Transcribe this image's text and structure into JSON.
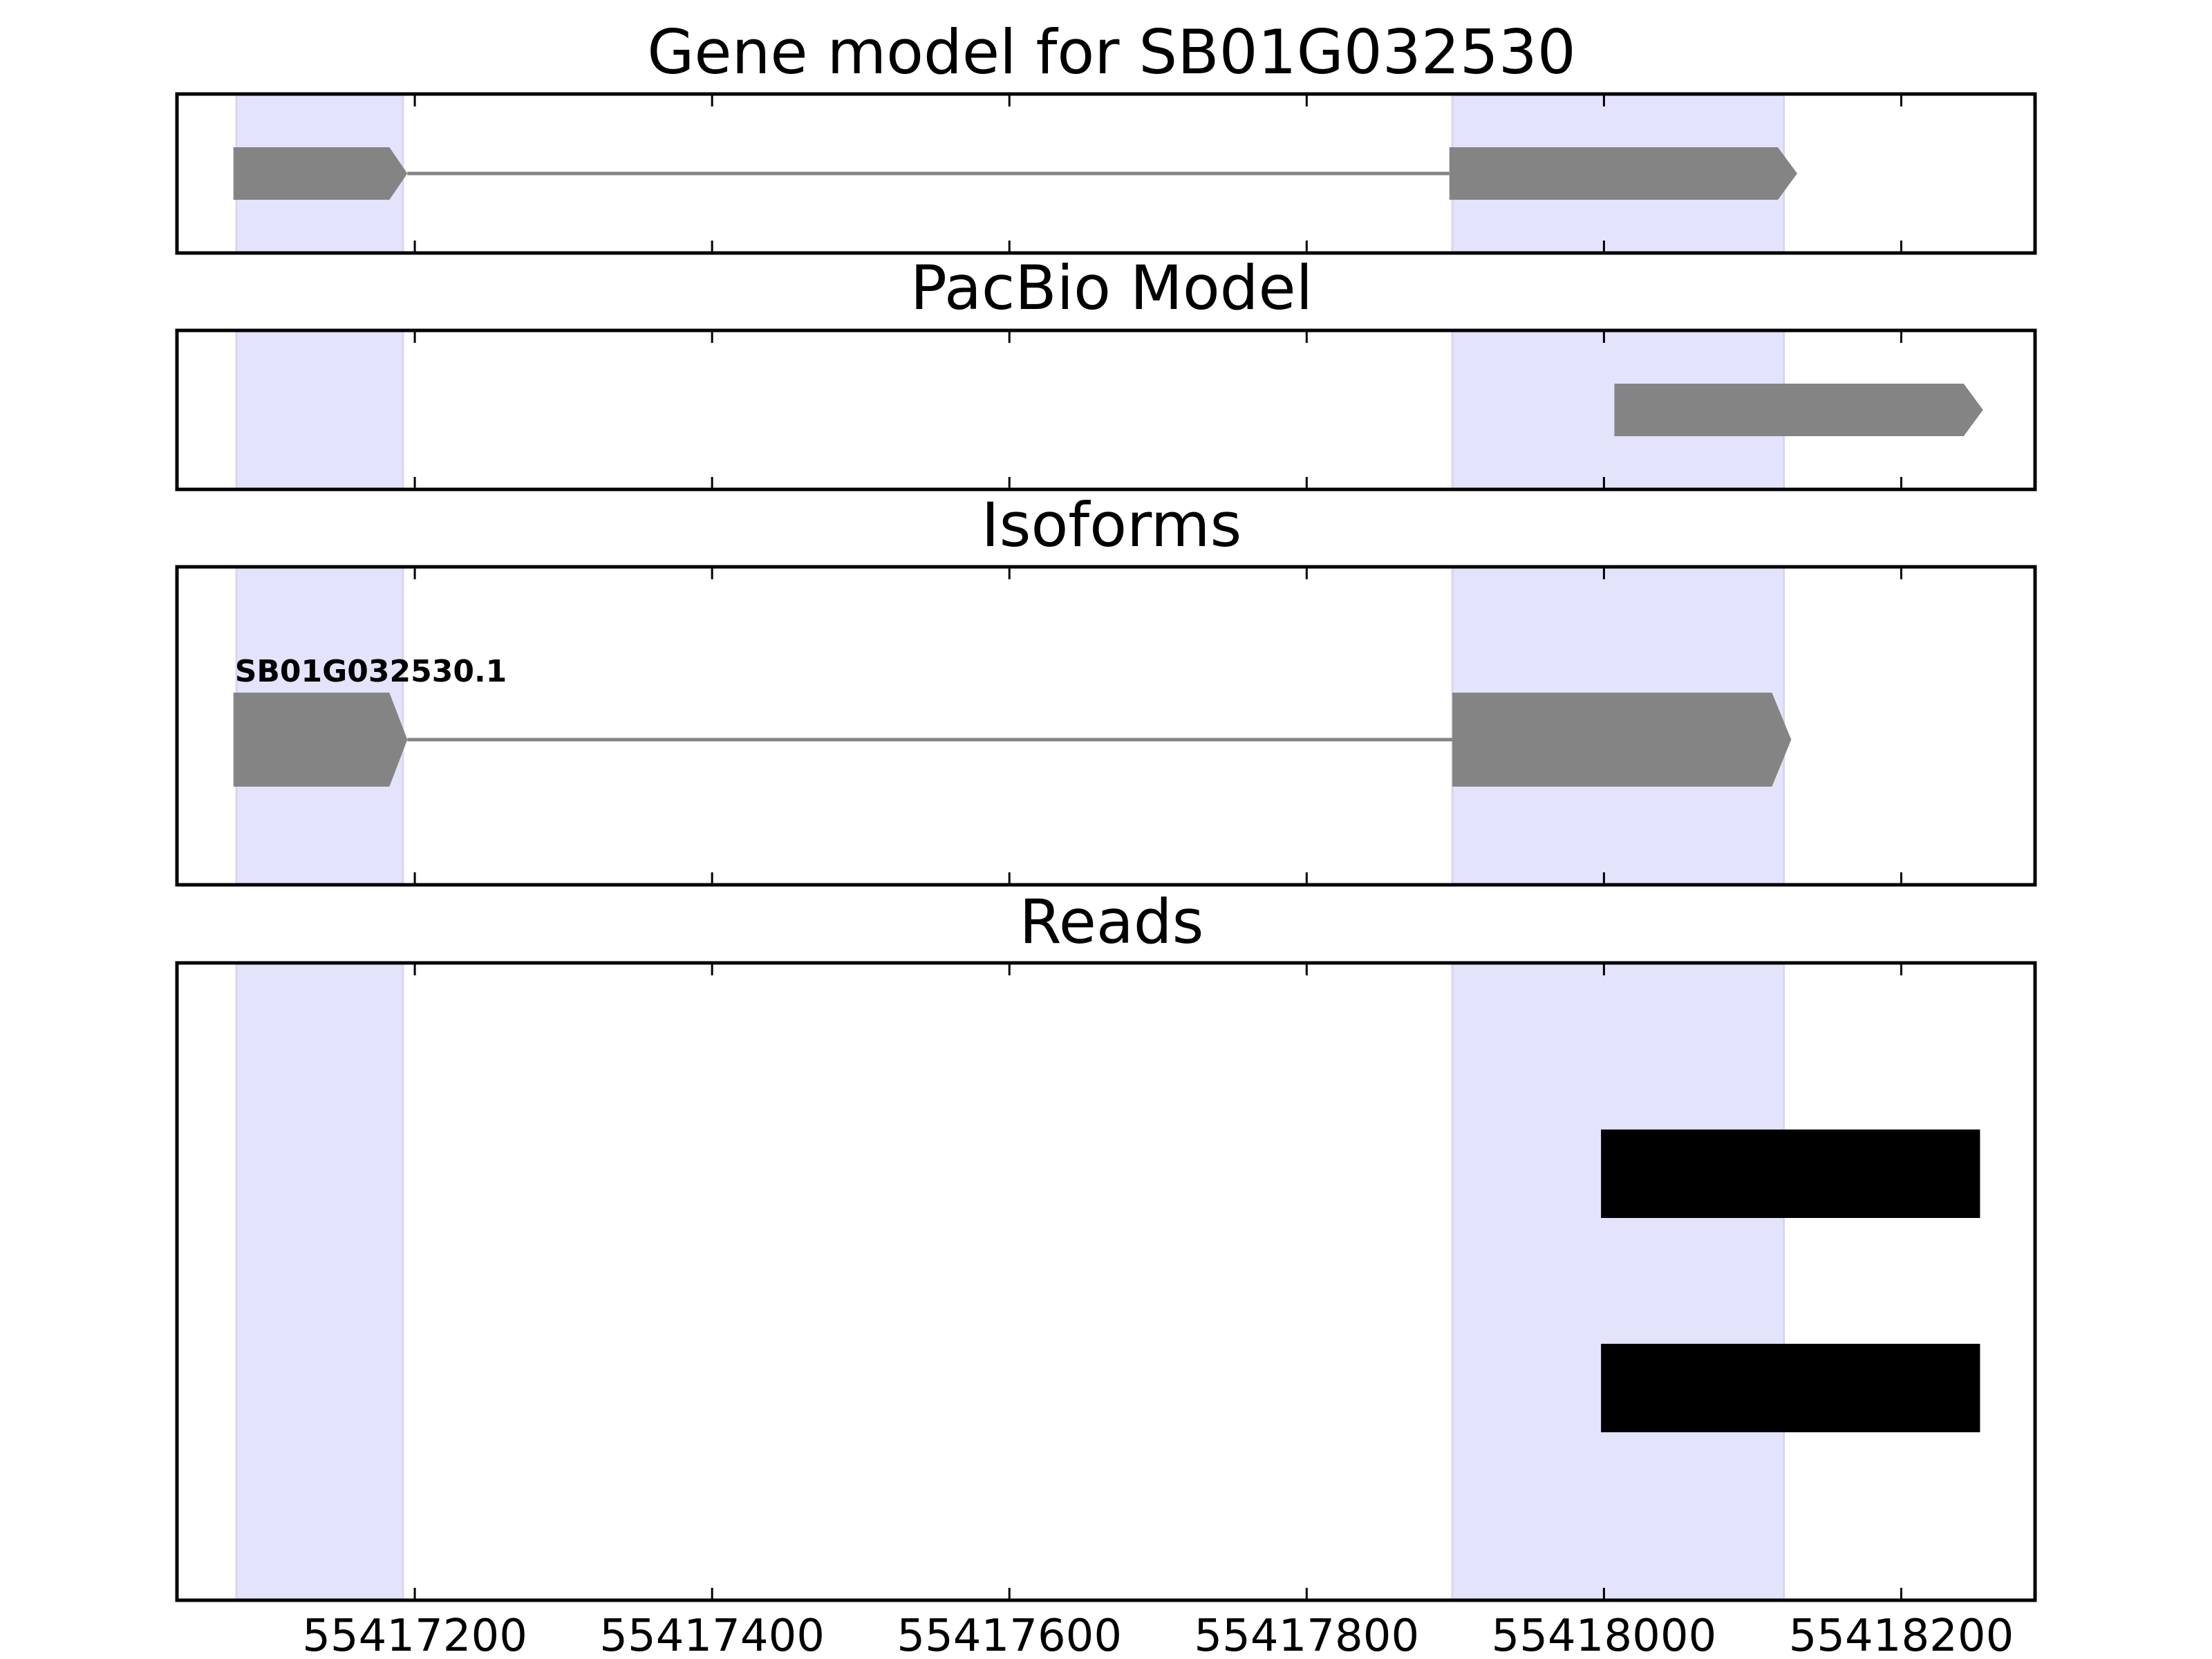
{
  "chart_data": {
    "type": "gene-track",
    "title": "Gene model for SB01G032530",
    "x_ticks": [
      55417200,
      55417400,
      55417600,
      55417800,
      55418000,
      55418200
    ],
    "xlim": [
      55417040,
      55418290
    ],
    "highlight_regions": [
      [
        55417080,
        55417192
      ],
      [
        55417898,
        55418121
      ]
    ],
    "colors": {
      "highlight": "#e3e3fc",
      "feature": "#848484",
      "intron": "#848484",
      "read": "#000000"
    },
    "panels": [
      {
        "id": "gene-model",
        "title": "Gene model for SB01G032530",
        "features": [
          {
            "label": "",
            "strand": "+",
            "exons": [
              [
                55417078,
                55417195
              ],
              [
                55417896,
                55418130
              ]
            ]
          }
        ]
      },
      {
        "id": "pacbio-model",
        "title": "PacBio Model",
        "features": [
          {
            "label": "",
            "strand": "+",
            "exons": [
              [
                55418007,
                55418255
              ]
            ]
          }
        ]
      },
      {
        "id": "isoforms",
        "title": "Isoforms",
        "features": [
          {
            "label": "SB01G032530.1",
            "strand": "+",
            "exons": [
              [
                55417078,
                55417195
              ],
              [
                55417898,
                55418126
              ]
            ]
          }
        ]
      },
      {
        "id": "reads",
        "title": "Reads",
        "reads": [
          [
            55417998,
            55418253
          ],
          [
            55417998,
            55418253
          ]
        ]
      }
    ]
  }
}
